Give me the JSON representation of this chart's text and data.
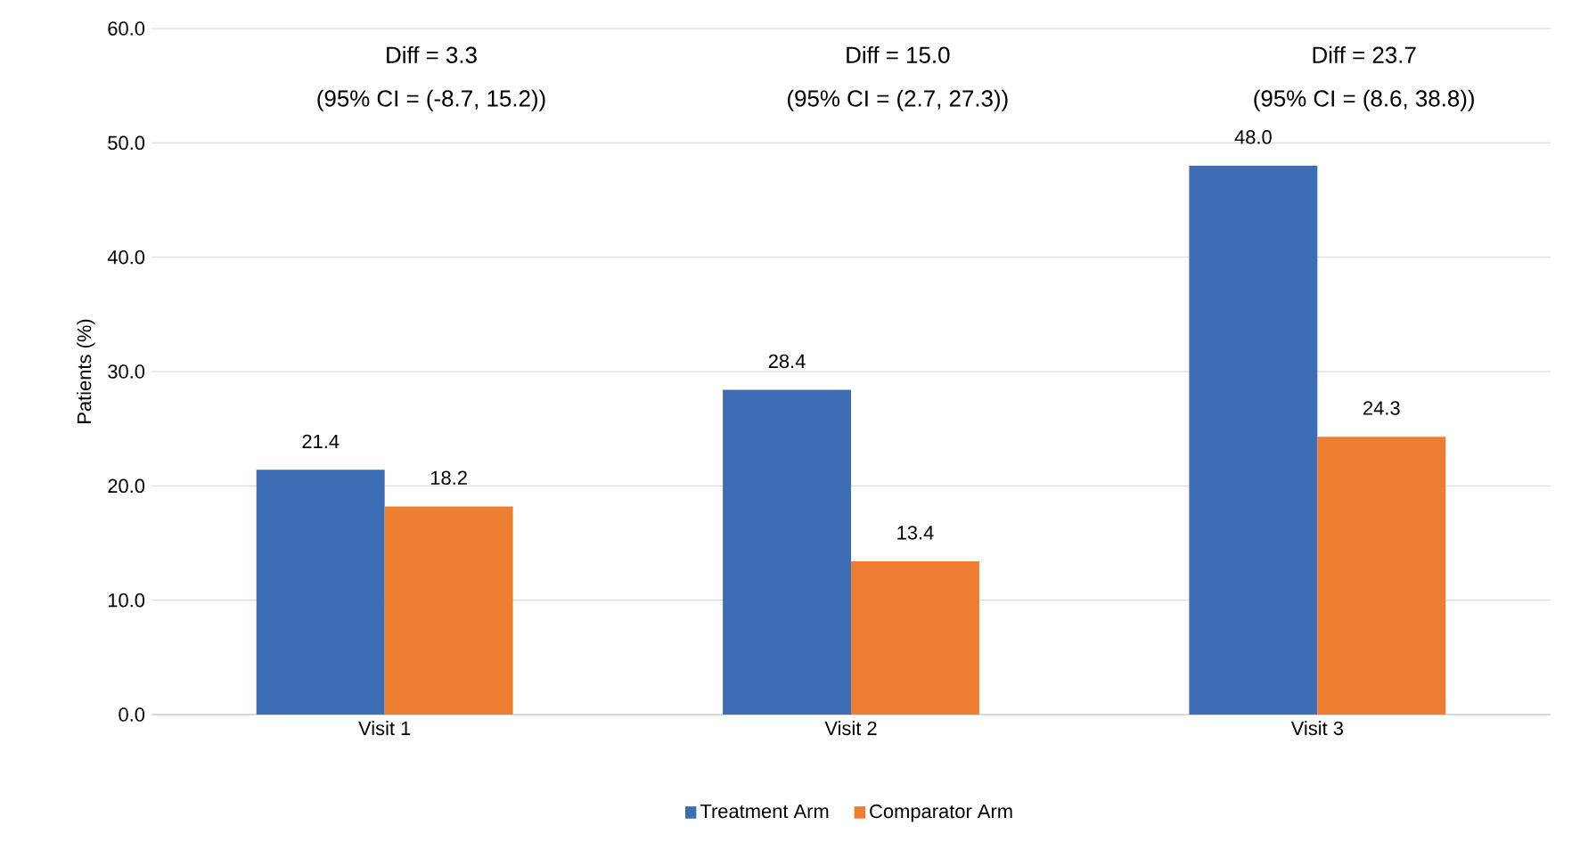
{
  "chart_data": {
    "type": "bar",
    "ylabel": "Patients (%)",
    "categories": [
      "Visit 1",
      "Visit 2",
      "Visit 3"
    ],
    "series": [
      {
        "name": "Treatment Arm",
        "color": "#3d6db5",
        "values": [
          21.4,
          28.4,
          48.0
        ],
        "value_labels": [
          "21.4",
          "28.4",
          "48.0"
        ]
      },
      {
        "name": "Comparator Arm",
        "color": "#ed7d31",
        "values": [
          18.2,
          13.4,
          24.3
        ],
        "value_labels": [
          "18.2",
          "13.4",
          "24.3"
        ]
      }
    ],
    "ylim": [
      0,
      60
    ],
    "yticks": [
      {
        "value": 0,
        "label": "0.0"
      },
      {
        "value": 10,
        "label": "10.0"
      },
      {
        "value": 20,
        "label": "20.0"
      },
      {
        "value": 30,
        "label": "30.0"
      },
      {
        "value": 40,
        "label": "40.0"
      },
      {
        "value": 50,
        "label": "50.0"
      },
      {
        "value": 60,
        "label": "60.0"
      }
    ],
    "grid": "y",
    "legend": "bottom",
    "annotations": [
      "Diff = 3.3",
      "(95% CI = (-8.7, 15.2))",
      "Diff = 15.0",
      "(95% CI = (2.7, 27.3))",
      "Diff = 23.7",
      "(95% CI = (8.6, 38.8))"
    ]
  }
}
